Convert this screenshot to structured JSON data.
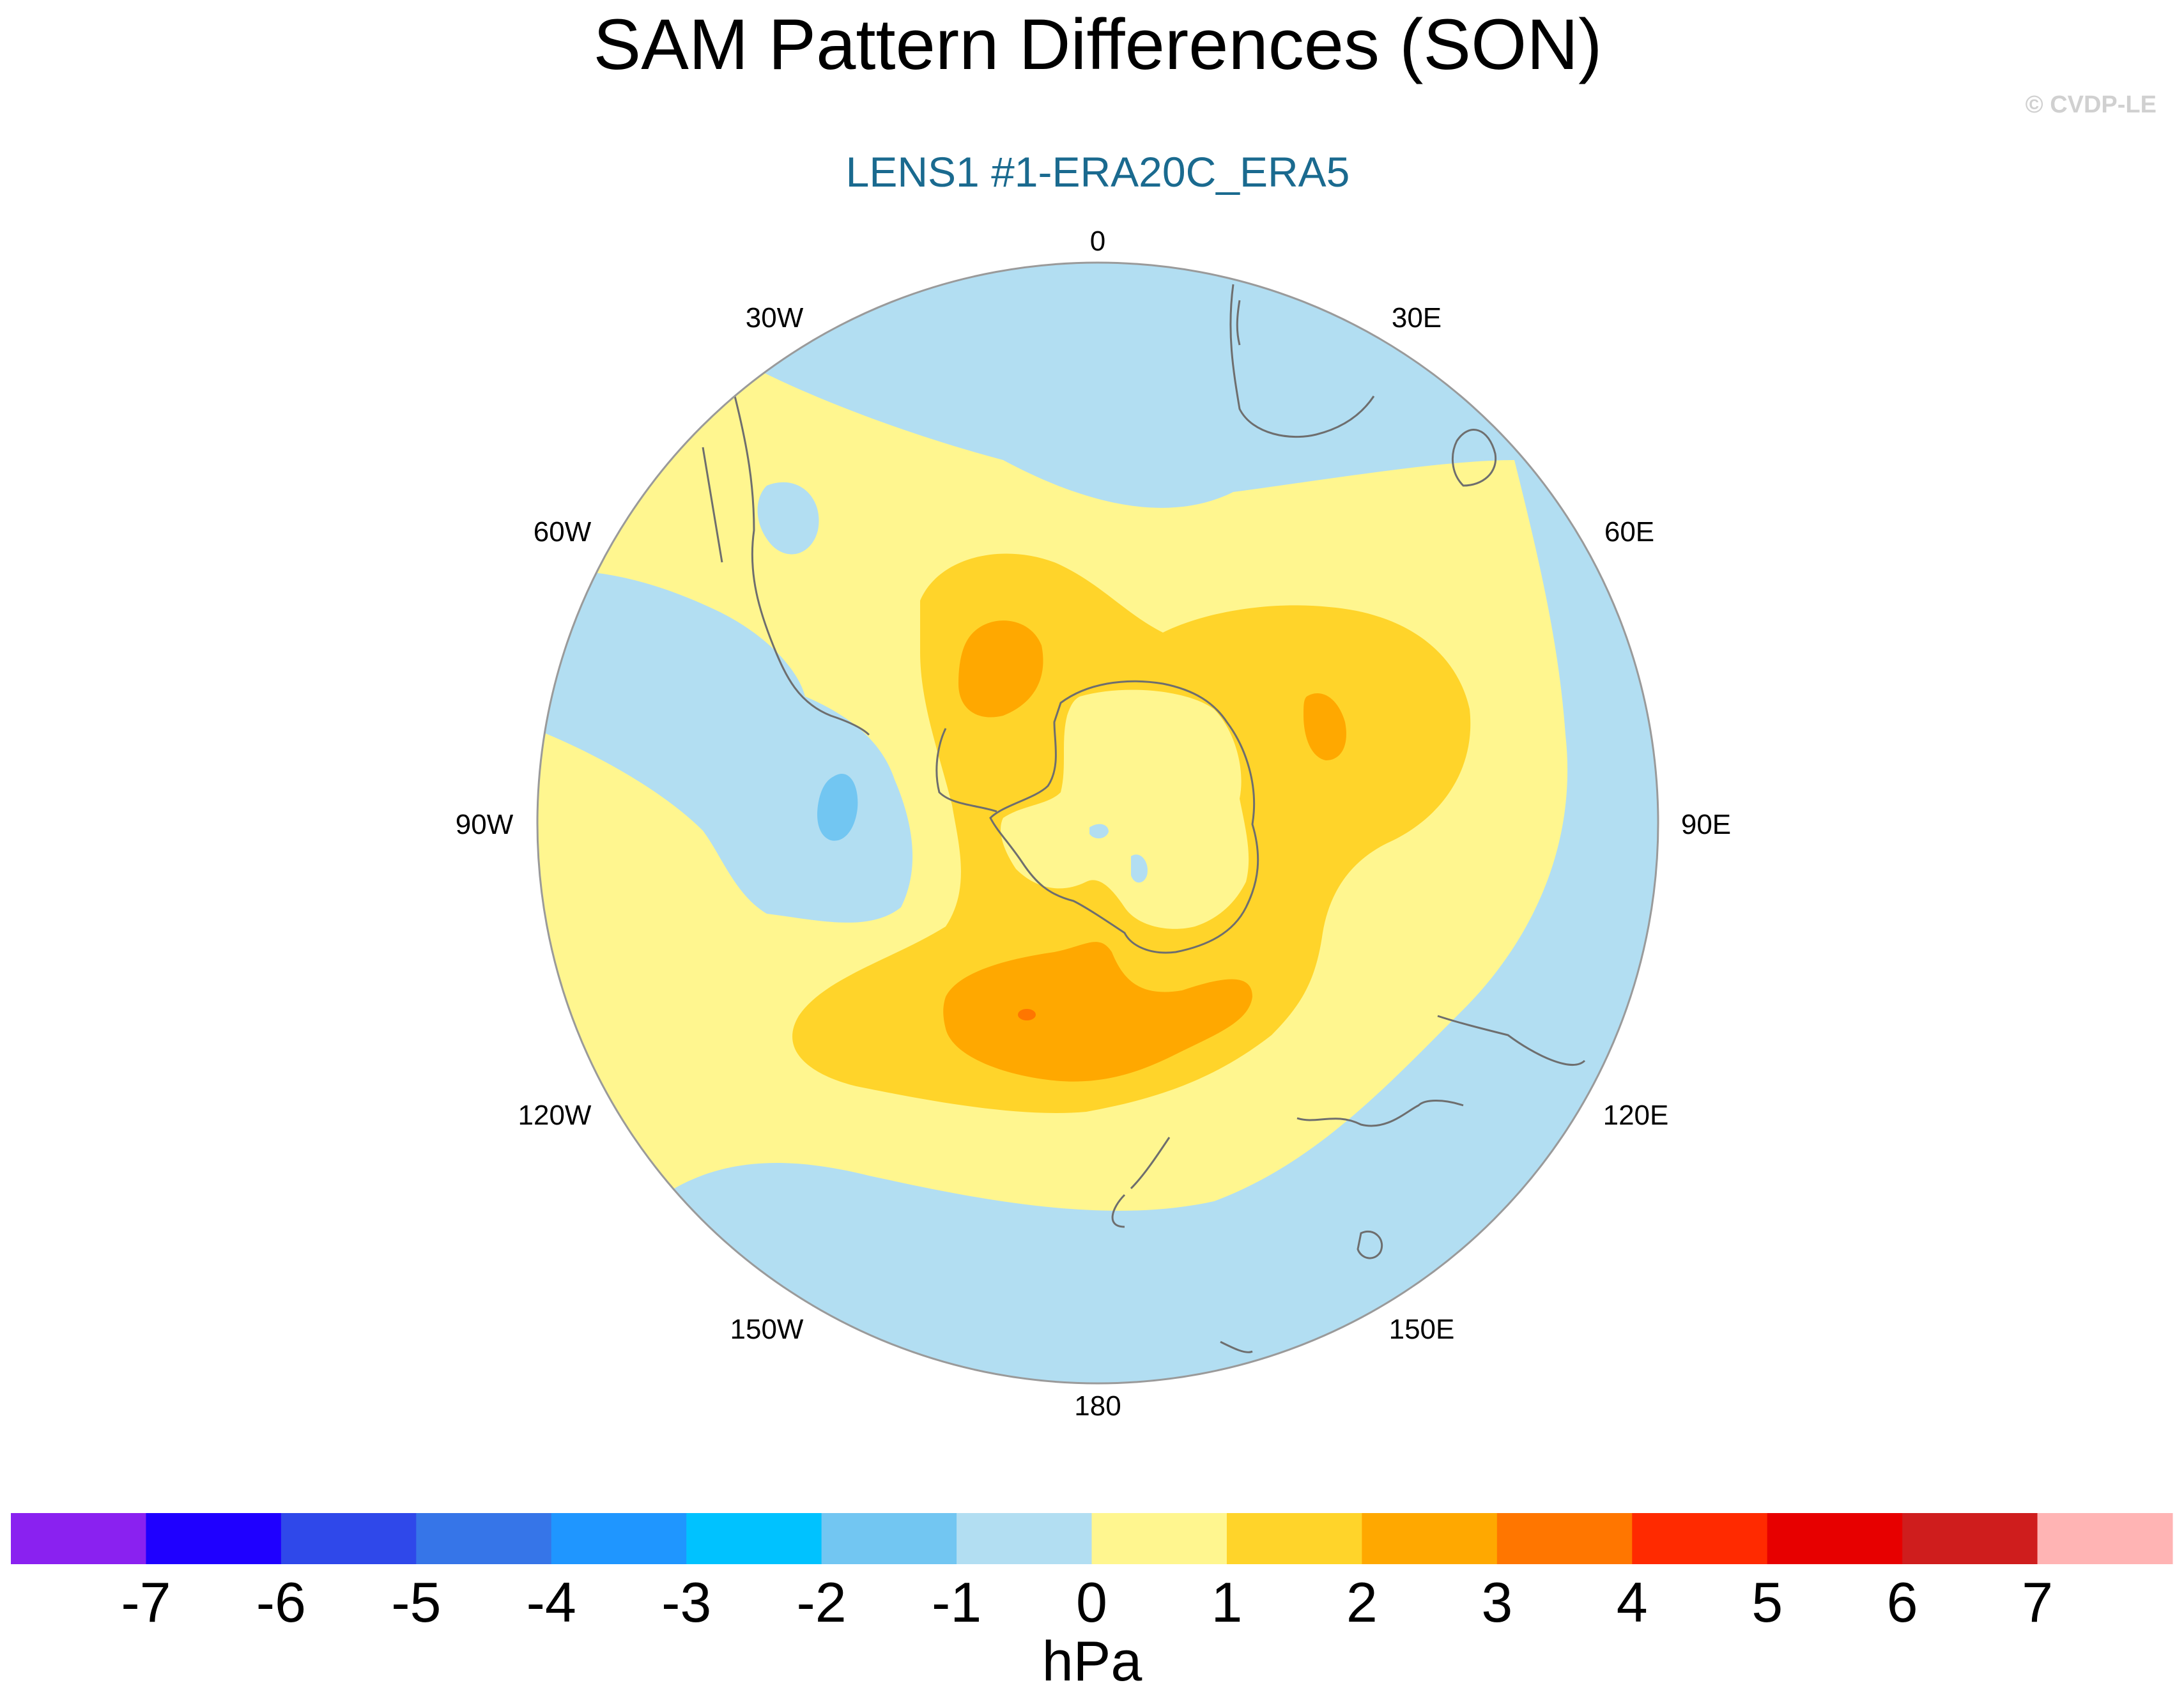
{
  "title": "SAM Pattern Differences (SON)",
  "subtitle": "LENS1 #1-ERA20C_ERA5",
  "copyright": "© CVDP-LE",
  "colors": {
    "title": "#000000",
    "subtitle": "#1a6a8f",
    "copyright": "#d0d0d0",
    "coastline": "#6e6e6e",
    "map_border": "#9a9a9a"
  },
  "map": {
    "projection": "south-polar-stereographic",
    "longitude_labels": [
      "0",
      "30E",
      "60E",
      "90E",
      "120E",
      "150E",
      "180",
      "150W",
      "120W",
      "90W",
      "60W",
      "30W"
    ]
  },
  "colorbar": {
    "unit": "hPa",
    "tick_labels": [
      "-7",
      "-6",
      "-5",
      "-4",
      "-3",
      "-2",
      "-1",
      "0",
      "1",
      "2",
      "3",
      "4",
      "5",
      "6",
      "7"
    ],
    "colors": [
      "#8a21f0",
      "#1f00ff",
      "#2f48ea",
      "#3675e8",
      "#1f96ff",
      "#00c2ff",
      "#72c6f2",
      "#b2def2",
      "#fff68f",
      "#ffd42a",
      "#ffa800",
      "#ff7600",
      "#ff2a00",
      "#e70000",
      "#cf1d1d",
      "#ffb4b4"
    ]
  }
}
